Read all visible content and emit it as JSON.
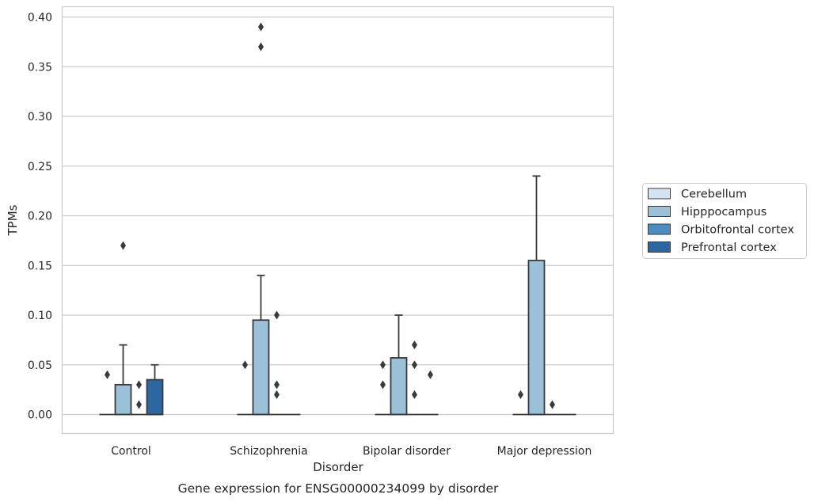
{
  "chart_data": {
    "type": "box",
    "title": "",
    "caption": "Gene expression for ENSG00000234099 by disorder",
    "xlabel": "Disorder",
    "ylabel": "TPMs",
    "ylim": [
      -0.02,
      0.41
    ],
    "yticks": [
      0.0,
      0.05,
      0.1,
      0.15,
      0.2,
      0.25,
      0.3,
      0.35,
      0.4
    ],
    "ytick_labels": [
      "0.00",
      "0.05",
      "0.10",
      "0.15",
      "0.20",
      "0.25",
      "0.30",
      "0.35",
      "0.40"
    ],
    "grid": "horizontal",
    "legend_placement": "right",
    "categories": [
      "Control",
      "Schizophrenia",
      "Bipolar disorder",
      "Major depression"
    ],
    "series": [
      {
        "name": "Cerebellum",
        "color": "#d4e3f0",
        "boxes": [
          {
            "q1": 0,
            "median": 0,
            "q3": 0,
            "whisker_low": 0,
            "whisker_high": 0,
            "outliers": [
              0.04
            ]
          },
          {
            "q1": 0,
            "median": 0,
            "q3": 0,
            "whisker_low": 0,
            "whisker_high": 0,
            "outliers": [
              0.05
            ]
          },
          {
            "q1": 0,
            "median": 0,
            "q3": 0,
            "whisker_low": 0,
            "whisker_high": 0,
            "outliers": [
              0.03,
              0.05
            ]
          },
          {
            "q1": 0,
            "median": 0,
            "q3": 0,
            "whisker_low": 0,
            "whisker_high": 0,
            "outliers": [
              0.02
            ]
          }
        ]
      },
      {
        "name": "Hipppocampus",
        "color": "#9bc1d9",
        "boxes": [
          {
            "q1": 0,
            "median": 0,
            "q3": 0.03,
            "whisker_low": 0,
            "whisker_high": 0.07,
            "outliers": [
              0.17
            ]
          },
          {
            "q1": 0,
            "median": 0,
            "q3": 0.095,
            "whisker_low": 0,
            "whisker_high": 0.14,
            "outliers": [
              0.37,
              0.39
            ]
          },
          {
            "q1": 0,
            "median": 0,
            "q3": 0.057,
            "whisker_low": 0,
            "whisker_high": 0.1,
            "outliers": []
          },
          {
            "q1": 0,
            "median": 0,
            "q3": 0.155,
            "whisker_low": 0,
            "whisker_high": 0.24,
            "outliers": []
          }
        ]
      },
      {
        "name": "Orbitofrontal cortex",
        "color": "#4b8fc2",
        "boxes": [
          {
            "q1": 0,
            "median": 0,
            "q3": 0,
            "whisker_low": 0,
            "whisker_high": 0,
            "outliers": [
              0.01,
              0.03
            ]
          },
          {
            "q1": 0,
            "median": 0,
            "q3": 0,
            "whisker_low": 0,
            "whisker_high": 0,
            "outliers": [
              0.02,
              0.03,
              0.1
            ]
          },
          {
            "q1": 0,
            "median": 0,
            "q3": 0,
            "whisker_low": 0,
            "whisker_high": 0,
            "outliers": [
              0.02,
              0.05,
              0.07
            ]
          },
          {
            "q1": 0,
            "median": 0,
            "q3": 0,
            "whisker_low": 0,
            "whisker_high": 0,
            "outliers": [
              0.01
            ]
          }
        ]
      },
      {
        "name": "Prefrontal cortex",
        "color": "#2d67a3",
        "boxes": [
          {
            "q1": 0,
            "median": 0,
            "q3": 0.035,
            "whisker_low": 0,
            "whisker_high": 0.05,
            "outliers": []
          },
          {
            "q1": 0,
            "median": 0,
            "q3": 0,
            "whisker_low": 0,
            "whisker_high": 0,
            "outliers": []
          },
          {
            "q1": 0,
            "median": 0,
            "q3": 0,
            "whisker_low": 0,
            "whisker_high": 0,
            "outliers": [
              0.04
            ]
          },
          {
            "q1": 0,
            "median": 0,
            "q3": 0,
            "whisker_low": 0,
            "whisker_high": 0,
            "outliers": []
          }
        ]
      }
    ]
  }
}
